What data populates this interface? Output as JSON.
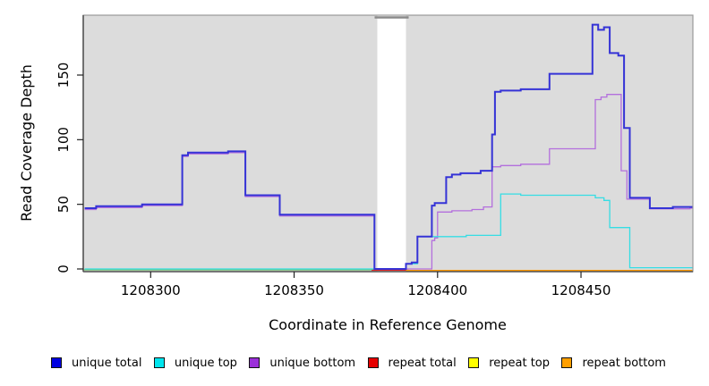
{
  "chart_data": {
    "type": "line",
    "subtype": "step-coverage",
    "title": "",
    "xlabel": "Coordinate in Reference Genome",
    "ylabel": "Read Coverage Depth",
    "xlim": [
      1208276.5,
      1208489
    ],
    "ylim": [
      0,
      196
    ],
    "x_ticks": [
      1208300,
      1208350,
      1208400,
      1208450
    ],
    "x_tick_labels": [
      "1208300",
      "1208350",
      "1208400",
      "1208450"
    ],
    "y_ticks": [
      0,
      50,
      100,
      150
    ],
    "y_tick_labels": [
      "0",
      "50",
      "100",
      "150"
    ],
    "grid": false,
    "panel_background": "#dcdcdc",
    "masked_region": {
      "x_start": 1208379,
      "x_end": 1208389,
      "style": "white unshaded vertical band"
    },
    "series": [
      {
        "name": "unique bottom",
        "color": "#b36fdd",
        "width": 1.3,
        "points": [
          [
            1208277,
            46
          ],
          [
            1208281,
            47.5
          ],
          [
            1208297,
            49
          ],
          [
            1208311,
            87
          ],
          [
            1208313,
            89
          ],
          [
            1208327,
            90
          ],
          [
            1208333,
            56
          ],
          [
            1208345,
            41
          ],
          [
            1208378,
            0
          ],
          [
            1208398,
            22
          ],
          [
            1208399,
            24
          ],
          [
            1208400,
            44
          ],
          [
            1208405,
            45
          ],
          [
            1208412,
            46
          ],
          [
            1208416,
            48
          ],
          [
            1208419,
            79
          ],
          [
            1208422,
            80
          ],
          [
            1208429,
            81
          ],
          [
            1208439,
            93
          ],
          [
            1208455,
            131
          ],
          [
            1208457,
            133
          ],
          [
            1208459,
            135
          ],
          [
            1208464,
            76
          ],
          [
            1208466,
            54
          ],
          [
            1208474,
            46.5
          ],
          [
            1208488,
            47
          ]
        ]
      },
      {
        "name": "unique top",
        "color": "#35dde4",
        "width": 1.3,
        "points": [
          [
            1208277,
            0
          ],
          [
            1208378,
            0
          ],
          [
            1208389,
            4
          ],
          [
            1208393,
            25
          ],
          [
            1208410,
            26
          ],
          [
            1208422,
            58
          ],
          [
            1208429,
            57
          ],
          [
            1208455,
            55
          ],
          [
            1208458,
            53
          ],
          [
            1208460,
            32
          ],
          [
            1208467,
            1
          ],
          [
            1208488,
            1
          ]
        ]
      },
      {
        "name": "unique total",
        "color": "#3533d6",
        "width": 2,
        "points": [
          [
            1208277,
            47
          ],
          [
            1208281,
            48.5
          ],
          [
            1208297,
            50
          ],
          [
            1208311,
            88
          ],
          [
            1208313,
            90
          ],
          [
            1208327,
            91
          ],
          [
            1208333,
            57
          ],
          [
            1208345,
            42
          ],
          [
            1208378,
            0
          ],
          [
            1208389,
            4
          ],
          [
            1208391,
            5
          ],
          [
            1208393,
            25
          ],
          [
            1208398,
            49
          ],
          [
            1208399,
            51
          ],
          [
            1208403,
            71
          ],
          [
            1208405,
            73
          ],
          [
            1208408,
            74
          ],
          [
            1208415,
            76
          ],
          [
            1208419,
            104
          ],
          [
            1208420,
            137
          ],
          [
            1208422,
            138
          ],
          [
            1208429,
            139
          ],
          [
            1208439,
            151
          ],
          [
            1208454,
            189
          ],
          [
            1208456,
            185
          ],
          [
            1208458,
            187
          ],
          [
            1208460,
            167
          ],
          [
            1208463,
            165
          ],
          [
            1208465,
            109
          ],
          [
            1208467,
            55
          ],
          [
            1208474,
            47
          ],
          [
            1208482,
            48
          ],
          [
            1208488,
            48
          ]
        ]
      },
      {
        "name": "repeat total",
        "color": "#dd2222",
        "width": 1.1,
        "points": [
          [
            1208277,
            0
          ],
          [
            1208488,
            0
          ]
        ]
      },
      {
        "name": "repeat top",
        "color": "#eeee00",
        "width": 1.1,
        "points": [
          [
            1208277,
            0
          ],
          [
            1208488,
            0
          ]
        ]
      },
      {
        "name": "repeat bottom",
        "color": "#ff9800",
        "width": 1.5,
        "points": [
          [
            1208277,
            0
          ],
          [
            1208488,
            0
          ]
        ]
      }
    ],
    "baseline_segments": [
      {
        "name": "zero-line-left-green-blend",
        "color": "#6cc56c",
        "from": 1208276.5,
        "to": 1208379,
        "offset": 1,
        "width": 1.2
      },
      {
        "name": "zero-line-gap-red",
        "color": "#dd2222",
        "from": 1208377,
        "to": 1208390,
        "offset": 1.5,
        "width": 1.2
      },
      {
        "name": "zero-line-right-orange",
        "color": "#ff9800",
        "from": 1208389,
        "to": 1208489,
        "offset": 1.8,
        "width": 1.6
      }
    ],
    "legend": [
      {
        "label": "unique total",
        "color": "#0000e0"
      },
      {
        "label": "unique top",
        "color": "#00e5ee"
      },
      {
        "label": "unique bottom",
        "color": "#9b30d9"
      },
      {
        "label": "repeat total",
        "color": "#e60000"
      },
      {
        "label": "repeat top",
        "color": "#ffff00"
      },
      {
        "label": "repeat bottom",
        "color": "#ff9f00"
      }
    ],
    "axis_color": "#555555",
    "box_color": "#999999",
    "tick_color": "#222222"
  }
}
